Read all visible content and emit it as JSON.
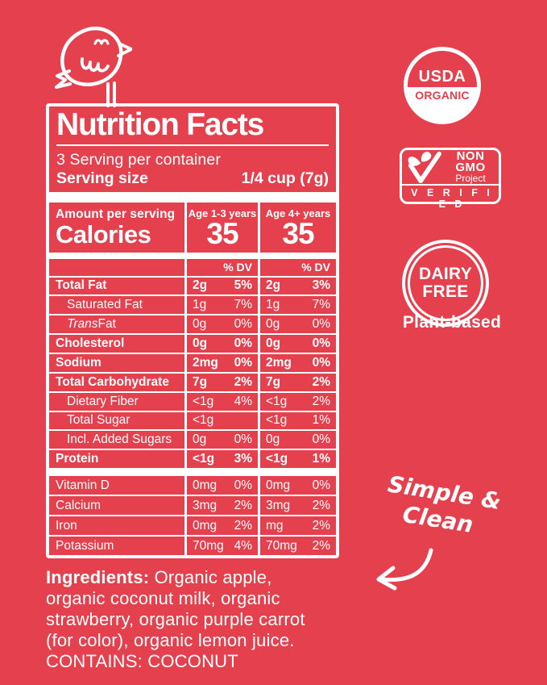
{
  "colors": {
    "background": "#E5404D",
    "foreground": "#FFFFFF"
  },
  "label": {
    "title": "Nutrition Facts",
    "servings_per_container": "3 Serving per container",
    "serving_size_label": "Serving size",
    "serving_size_value": "1/4 cup (7g)",
    "amount_per_serving": "Amount per serving",
    "calories_label": "Calories",
    "columns": [
      {
        "header": "Age 1-3 years",
        "calories": "35",
        "dv_header": "% DV"
      },
      {
        "header": "Age 4+ years",
        "calories": "35",
        "dv_header": "% DV"
      }
    ],
    "main_rows": [
      {
        "name": "Total Fat",
        "bold": true,
        "indent": false,
        "c1_amt": "2g",
        "c1_dv": "5%",
        "c2_amt": "2g",
        "c2_dv": "3%"
      },
      {
        "name": "Saturated Fat",
        "bold": false,
        "indent": true,
        "c1_amt": "1g",
        "c1_dv": "7%",
        "c2_amt": "1g",
        "c2_dv": "7%"
      },
      {
        "name": "Trans Fat",
        "italic_prefix": "Trans",
        "bold": false,
        "indent": true,
        "c1_amt": "0g",
        "c1_dv": "0%",
        "c2_amt": "0g",
        "c2_dv": "0%"
      },
      {
        "name": "Cholesterol",
        "bold": true,
        "indent": false,
        "c1_amt": "0g",
        "c1_dv": "0%",
        "c2_amt": "0g",
        "c2_dv": "0%"
      },
      {
        "name": "Sodium",
        "bold": true,
        "indent": false,
        "c1_amt": "2mg",
        "c1_dv": "0%",
        "c2_amt": "2mg",
        "c2_dv": "0%"
      },
      {
        "name": "Total Carbohydrate",
        "bold": true,
        "indent": false,
        "c1_amt": "7g",
        "c1_dv": "2%",
        "c2_amt": "7g",
        "c2_dv": "2%"
      },
      {
        "name": "Dietary Fiber",
        "bold": false,
        "indent": true,
        "c1_amt": "<1g",
        "c1_dv": "4%",
        "c2_amt": "<1g",
        "c2_dv": "2%"
      },
      {
        "name": "Total Sugar",
        "bold": false,
        "indent": true,
        "c1_amt": "<1g",
        "c1_dv": "",
        "c2_amt": "<1g",
        "c2_dv": "1%"
      },
      {
        "name": "Incl. Added Sugars",
        "bold": false,
        "indent": true,
        "c1_amt": "0g",
        "c1_dv": "0%",
        "c2_amt": "0g",
        "c2_dv": "0%"
      },
      {
        "name": "Protein",
        "bold": true,
        "indent": false,
        "c1_amt": "<1g",
        "c1_dv": "3%",
        "c2_amt": "<1g",
        "c2_dv": "1%"
      }
    ],
    "vitamin_rows": [
      {
        "name": "Vitamin D",
        "bold": false,
        "indent": false,
        "c1_amt": "0mg",
        "c1_dv": "0%",
        "c2_amt": "0mg",
        "c2_dv": "0%"
      },
      {
        "name": "Calcium",
        "bold": false,
        "indent": false,
        "c1_amt": "3mg",
        "c1_dv": "2%",
        "c2_amt": "3mg",
        "c2_dv": "2%"
      },
      {
        "name": "Iron",
        "bold": false,
        "indent": false,
        "c1_amt": "0mg",
        "c1_dv": "2%",
        "c2_amt": "mg",
        "c2_dv": "2%"
      },
      {
        "name": "Potassium",
        "bold": false,
        "indent": false,
        "c1_amt": "70mg",
        "c1_dv": "4%",
        "c2_amt": "70mg",
        "c2_dv": "2%"
      }
    ]
  },
  "ingredients": {
    "lead_bold": "Ingredients:",
    "lines": [
      "Ingredients: Organic apple,",
      "organic coconut milk, organic",
      "strawberry, organic purple carrot",
      "(for color), organic lemon juice.",
      "CONTAINS: COCONUT"
    ]
  },
  "badges": {
    "usda": {
      "top": "USDA",
      "bottom": "ORGANIC"
    },
    "non_gmo": {
      "line1": "NON",
      "line2": "GMO",
      "line3": "Project",
      "verified": "V E R I F I E D"
    },
    "dairy": {
      "line1": "DAIRY",
      "line2": "FREE",
      "caption": "Plant-based"
    }
  },
  "annotation": {
    "line1": "Simple &",
    "line2": "Clean"
  },
  "icons": {
    "bird": "bird-icon",
    "butterfly_check": "butterfly-check-icon",
    "arrow": "curved-arrow-icon"
  }
}
